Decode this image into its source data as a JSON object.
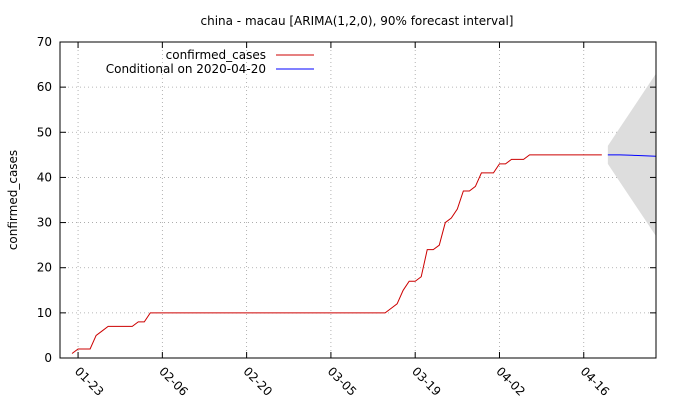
{
  "chart_data": {
    "type": "line",
    "title": "china - macau [ARIMA(1,2,0), 90% forecast interval]",
    "xlabel": "",
    "ylabel": "confirmed_cases",
    "ylim": [
      0,
      70
    ],
    "yticks": [
      0,
      10,
      20,
      30,
      40,
      50,
      60,
      70
    ],
    "xlim": [
      "2020-01-20",
      "2020-04-28"
    ],
    "xticks": [
      {
        "date": "2020-01-23",
        "label": "01-23"
      },
      {
        "date": "2020-02-06",
        "label": "02-06"
      },
      {
        "date": "2020-02-20",
        "label": "02-20"
      },
      {
        "date": "2020-03-05",
        "label": "03-05"
      },
      {
        "date": "2020-03-19",
        "label": "03-19"
      },
      {
        "date": "2020-04-02",
        "label": "04-02"
      },
      {
        "date": "2020-04-16",
        "label": "04-16"
      }
    ],
    "grid": true,
    "legend": "top-left",
    "series": [
      {
        "name": "confirmed_cases",
        "color": "#cc0000",
        "x": [
          "2020-01-22",
          "2020-01-23",
          "2020-01-24",
          "2020-01-25",
          "2020-01-26",
          "2020-01-27",
          "2020-01-28",
          "2020-01-29",
          "2020-01-30",
          "2020-01-31",
          "2020-02-01",
          "2020-02-02",
          "2020-02-03",
          "2020-02-04",
          "2020-02-05",
          "2020-03-14",
          "2020-03-15",
          "2020-03-16",
          "2020-03-17",
          "2020-03-18",
          "2020-03-19",
          "2020-03-20",
          "2020-03-21",
          "2020-03-22",
          "2020-03-23",
          "2020-03-24",
          "2020-03-25",
          "2020-03-26",
          "2020-03-27",
          "2020-03-28",
          "2020-03-29",
          "2020-03-30",
          "2020-03-31",
          "2020-04-01",
          "2020-04-02",
          "2020-04-03",
          "2020-04-04",
          "2020-04-05",
          "2020-04-06",
          "2020-04-07",
          "2020-04-08",
          "2020-04-19"
        ],
        "y": [
          1,
          2,
          2,
          2,
          5,
          6,
          7,
          7,
          7,
          7,
          7,
          8,
          8,
          10,
          10,
          10,
          11,
          12,
          15,
          17,
          17,
          18,
          24,
          24,
          25,
          30,
          31,
          33,
          37,
          37,
          38,
          41,
          41,
          41,
          43,
          43,
          44,
          44,
          44,
          45,
          45,
          45
        ]
      },
      {
        "name": "Conditional on 2020-04-20",
        "color": "#0000ff",
        "x": [
          "2020-04-20",
          "2020-04-22",
          "2020-04-24",
          "2020-04-26",
          "2020-04-28"
        ],
        "y": [
          45,
          45,
          44.9,
          44.8,
          44.7
        ]
      }
    ],
    "forecast_interval": {
      "color": "#dddddd",
      "x": [
        "2020-04-20",
        "2020-04-22",
        "2020-04-24",
        "2020-04-26",
        "2020-04-28"
      ],
      "lower": [
        43,
        39,
        35,
        31,
        27
      ],
      "upper": [
        47,
        51,
        55,
        59,
        63
      ]
    }
  }
}
